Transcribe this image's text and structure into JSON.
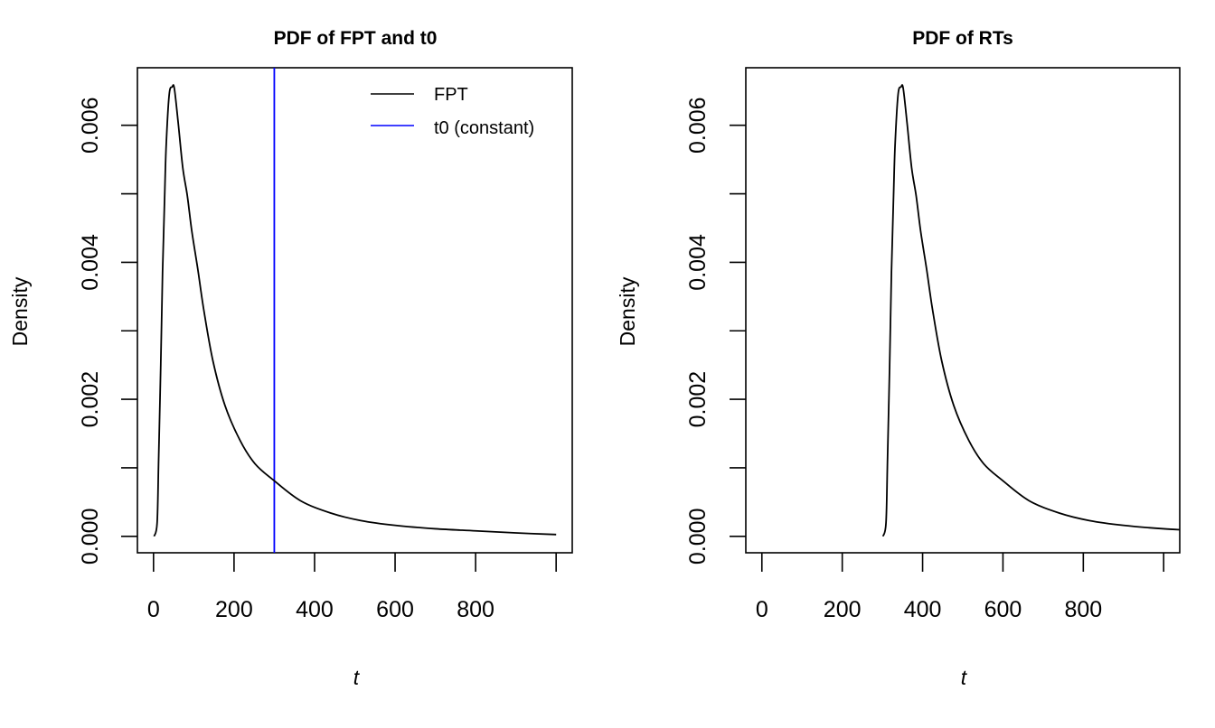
{
  "chart_data": [
    {
      "type": "line",
      "title": "PDF of FPT and t0",
      "xlabel": "t",
      "ylabel": "Density",
      "xlim": [
        -40,
        1040
      ],
      "ylim": [
        -0.00024,
        0.00684
      ],
      "xticks": [
        0,
        200,
        400,
        600,
        800,
        1000
      ],
      "xtick_labels": [
        "0",
        "200",
        "400",
        "600",
        "800",
        ""
      ],
      "yticks": [
        0,
        0.001,
        0.002,
        0.003,
        0.004,
        0.005,
        0.006
      ],
      "ytick_labels": [
        "0.000",
        "",
        "0.002",
        "",
        "0.004",
        "",
        "0.006"
      ],
      "grid": false,
      "legend": {
        "placement": "top-right",
        "entries": [
          {
            "label": "FPT",
            "color": "#000000"
          },
          {
            "label": "t0 (constant)",
            "color": "#0000FF"
          }
        ]
      },
      "series": [
        {
          "name": "FPT",
          "color": "#000000",
          "x": [
            1.5,
            9,
            12.7,
            18,
            22.5,
            27.7,
            31.5,
            39,
            46.4,
            51.7,
            61.4,
            72.7,
            84,
            95,
            110,
            125,
            147.6,
            177.5,
            215,
            252,
            298,
            365,
            440,
            515,
            600,
            700,
            800,
            900,
            1000
          ],
          "y": [
            0,
            0.0002,
            0.00112,
            0.00251,
            0.00386,
            0.00497,
            0.00571,
            0.00645,
            0.00656,
            0.00654,
            0.00603,
            0.00538,
            0.00497,
            0.00446,
            0.0039,
            0.0033,
            0.00256,
            0.00191,
            0.0014,
            0.00106,
            0.00082,
            0.00052,
            0.00034,
            0.00023,
            0.00016,
            0.00011,
            8e-05,
            5e-05,
            2.6e-05
          ]
        }
      ],
      "vlines": [
        {
          "name": "t0 (constant)",
          "x": 300,
          "color": "#0000FF"
        }
      ]
    },
    {
      "type": "line",
      "title": "PDF of RTs",
      "xlabel": "t",
      "ylabel": "Density",
      "xlim": [
        -40,
        1040
      ],
      "ylim": [
        -0.00024,
        0.00684
      ],
      "xticks": [
        0,
        200,
        400,
        600,
        800,
        1000
      ],
      "xtick_labels": [
        "0",
        "200",
        "400",
        "600",
        "800",
        ""
      ],
      "yticks": [
        0,
        0.001,
        0.002,
        0.003,
        0.004,
        0.005,
        0.006
      ],
      "ytick_labels": [
        "0.000",
        "",
        "0.002",
        "",
        "0.004",
        "",
        "0.006"
      ],
      "grid": false,
      "series": [
        {
          "color": "#000000",
          "x": [
            301.5,
            309,
            312.7,
            318,
            322.5,
            327.7,
            331.5,
            339,
            346.4,
            351.7,
            361.4,
            372.7,
            384,
            395,
            410,
            425,
            447.6,
            477.5,
            515,
            552,
            598,
            665,
            740,
            815,
            900,
            1000,
            1100
          ],
          "y": [
            0,
            0.0002,
            0.00112,
            0.00251,
            0.00386,
            0.00497,
            0.00571,
            0.00645,
            0.00656,
            0.00654,
            0.00603,
            0.00538,
            0.00497,
            0.00446,
            0.0039,
            0.0033,
            0.00256,
            0.00191,
            0.0014,
            0.00106,
            0.00082,
            0.00052,
            0.00034,
            0.00023,
            0.00016,
            0.00011,
            8e-05
          ]
        }
      ]
    }
  ]
}
